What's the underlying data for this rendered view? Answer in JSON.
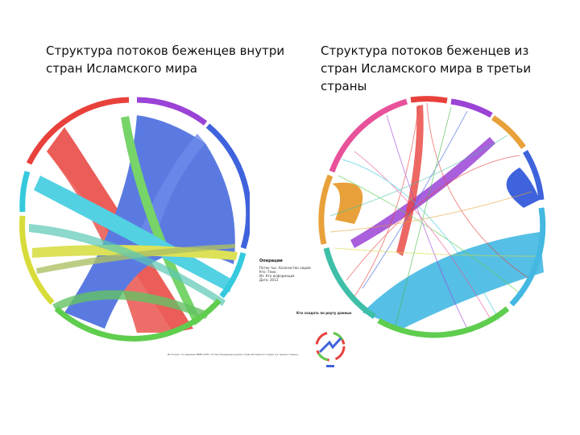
{
  "titles": {
    "left": "Структура потоков беженцев внутри стран Исламского мира",
    "right": "Структура потоков беженцев из стран Исламского мира в третьи страны"
  },
  "legend": {
    "heading": "Операции",
    "lines": [
      "Поток тыс. Количество людей",
      "Кто: Тема",
      "Из: Кто информация",
      "Дата: 2013"
    ],
    "bottom": "Кто создать по роуту данных"
  },
  "footnote": "Источник: по данным УВКБ ООН; потоки беженцев внутри стран Исламского мира и в третьи страны.",
  "colors": {
    "red": "#e8413c",
    "blue": "#3f63dc",
    "cyan": "#35c9dd",
    "sky": "#44b8e2",
    "green": "#5fcd4e",
    "purple": "#9b43d6",
    "orange": "#e8a13a",
    "yellow": "#d7dc3a",
    "pink": "#e8529a",
    "teal": "#3fbfa8"
  }
}
